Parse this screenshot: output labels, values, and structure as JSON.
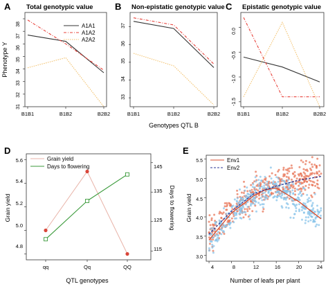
{
  "panels": {
    "A": {
      "letter": "A",
      "title": "Total genotypic value"
    },
    "B": {
      "letter": "B",
      "title": "Non-epistatic genotypic value"
    },
    "C": {
      "letter": "C",
      "title": "Epistatic genotypic value"
    },
    "D": {
      "letter": "D"
    },
    "E": {
      "letter": "E"
    }
  },
  "shared": {
    "top_ylabel": "Phenotype Y",
    "top_xlabel": "Genotypes QTL B"
  },
  "colors": {
    "A1A1": "#333333",
    "A1A2": "#e8413a",
    "A2A2": "#f3c26e",
    "grain": "#d9463a",
    "grain_line": "#e8b3a8",
    "days": "#3a9a3a",
    "env1": "#e8775a",
    "env2": "#8ac4ea",
    "env1_fit": "#d94d2e",
    "env2_fit": "#2a3596"
  },
  "chart_data": [
    {
      "id": "A",
      "type": "line",
      "title": "Total genotypic value",
      "ylabel": "Phenotype Y",
      "categories": [
        "B1B1",
        "B1B2",
        "B2B2"
      ],
      "ylim": [
        31,
        38.5
      ],
      "yticks": [
        31,
        32,
        33,
        34,
        35,
        36,
        37,
        38
      ],
      "legend": {
        "placement": "top-right",
        "entries": [
          "A1A1",
          "A1A2",
          "A2A2"
        ]
      },
      "series": [
        {
          "name": "A1A1",
          "values": [
            36.7,
            36.2,
            33.7
          ]
        },
        {
          "name": "A1A2",
          "values": [
            37.9,
            36.0,
            33.9
          ]
        },
        {
          "name": "A2A2",
          "values": [
            34.1,
            34.9,
            31.0
          ]
        }
      ]
    },
    {
      "id": "B",
      "type": "line",
      "title": "Non-epistatic genotypic value",
      "categories": [
        "B1B1",
        "B1B2",
        "B2B2"
      ],
      "ylim": [
        32.5,
        37.8
      ],
      "yticks": [
        33,
        34,
        35,
        36,
        37
      ],
      "series": [
        {
          "name": "A1A1",
          "values": [
            37.3,
            36.9,
            34.7
          ]
        },
        {
          "name": "A1A2",
          "values": [
            37.5,
            37.1,
            34.9
          ]
        },
        {
          "name": "A2A2",
          "values": [
            35.5,
            34.8,
            32.6
          ]
        }
      ]
    },
    {
      "id": "C",
      "type": "line",
      "title": "Epistatic genotypic value",
      "categories": [
        "B1B1",
        "B1B2",
        "B2B2"
      ],
      "ylim": [
        -1.6,
        0.3
      ],
      "yticks": [
        -1.5,
        -1.0,
        -0.5,
        0.0
      ],
      "series": [
        {
          "name": "A1A1",
          "values": [
            -0.6,
            -0.8,
            -1.1
          ]
        },
        {
          "name": "A1A2",
          "values": [
            0.2,
            -1.4,
            -1.4
          ]
        },
        {
          "name": "A2A2",
          "values": [
            -1.4,
            0.1,
            -1.6
          ]
        }
      ]
    },
    {
      "id": "D",
      "type": "line",
      "xlabel": "QTL genotypes",
      "ylabel": "Grain yield",
      "y2label": "Days to flowering",
      "categories": [
        "qq",
        "Qq",
        "QQ"
      ],
      "ylim": [
        4.75,
        5.65
      ],
      "yticks": [
        4.8,
        5.0,
        5.2,
        5.4,
        5.6
      ],
      "y2lim": [
        112,
        148
      ],
      "y2ticks": [
        115,
        125,
        135,
        145
      ],
      "legend": {
        "placement": "top-left",
        "entries": [
          "Grain yield",
          "Days to flowering"
        ]
      },
      "series": [
        {
          "name": "Grain yield",
          "axis": "left",
          "values": [
            5.0,
            5.5,
            4.8
          ]
        },
        {
          "name": "Days to flowering",
          "axis": "right",
          "values": [
            119,
            132,
            141
          ]
        }
      ]
    },
    {
      "id": "E",
      "type": "scatter",
      "xlabel": "Number of leafs per plant",
      "ylabel": "Grain yield",
      "xlim": [
        3.5,
        24.5
      ],
      "xticks": [
        4,
        8,
        12,
        16,
        20,
        24
      ],
      "ylim": [
        2.85,
        5.6
      ],
      "yticks": [
        3.0,
        3.5,
        4.0,
        4.5,
        5.0,
        5.5
      ],
      "legend": {
        "placement": "top-left",
        "entries": [
          "Env1",
          "Env2"
        ]
      },
      "series": [
        {
          "name": "Env1",
          "fit_x": [
            4,
            8,
            12,
            14,
            16,
            20,
            24
          ],
          "fit_y": [
            3.4,
            4.1,
            4.55,
            4.7,
            4.75,
            4.4,
            3.95
          ]
        },
        {
          "name": "Env2",
          "fit_x": [
            4,
            8,
            12,
            16,
            20,
            24
          ],
          "fit_y": [
            3.55,
            4.15,
            4.6,
            4.8,
            4.95,
            5.05
          ]
        }
      ]
    }
  ],
  "categories": {
    "top": [
      "B1B1",
      "B1B2",
      "B2B2"
    ],
    "D": [
      "qq",
      "Qq",
      "QQ"
    ]
  },
  "tick_labels": {
    "A": [
      "31",
      "32",
      "33",
      "34",
      "35",
      "36",
      "37",
      "38"
    ],
    "B": [
      "33",
      "34",
      "35",
      "36",
      "37"
    ],
    "C": [
      "-1.5",
      "-1.0",
      "-0.5",
      "0.0"
    ],
    "D_left": [
      "4.8",
      "5.0",
      "5.2",
      "5.4",
      "5.6"
    ],
    "D_right": [
      "115",
      "125",
      "135",
      "145"
    ],
    "E_x": [
      "4",
      "8",
      "12",
      "16",
      "20",
      "24"
    ],
    "E_y": [
      "3.0",
      "3.5",
      "4.0",
      "4.5",
      "5.0",
      "5.5"
    ]
  },
  "legends": {
    "A": [
      "A1A1",
      "A1A2",
      "A2A2"
    ],
    "D": [
      "Grain yield",
      "Days to flowering"
    ],
    "E": [
      "Env1",
      "Env2"
    ]
  },
  "axis_labels": {
    "D_x": "QTL genotypes",
    "D_y": "Grain yield",
    "D_y2": "Days to flowering",
    "E_x": "Number of leafs per plant",
    "E_y": "Grain yield"
  }
}
